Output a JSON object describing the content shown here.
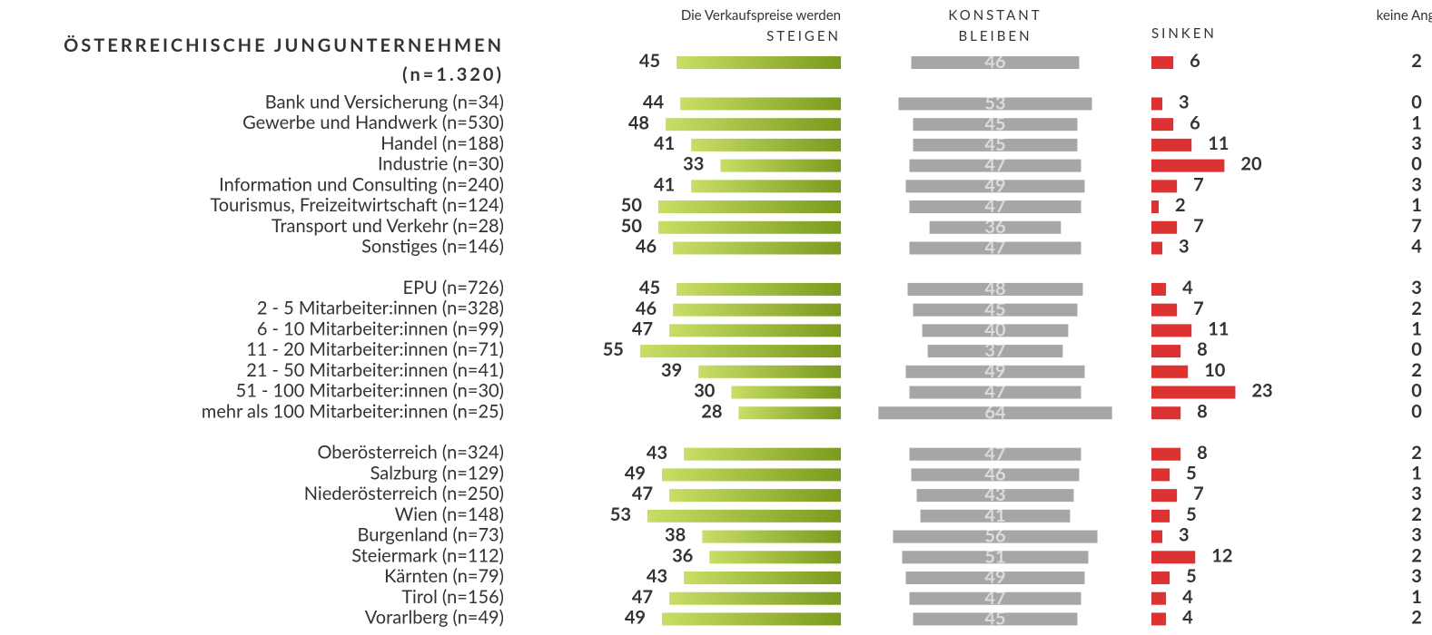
{
  "chart_data": {
    "type": "bar",
    "subtitle": "Die Verkaufspreise werden",
    "category_note": "(n=1.320)",
    "categories": [
      "ÖSTERREICHISCHE JUNGUNTERNEHMEN",
      "Bank und Versicherung (n=34)",
      "Gewerbe und Handwerk (n=530)",
      "Handel (n=188)",
      "Industrie (n=30)",
      "Information und Consulting (n=240)",
      "Tourismus, Freizeitwirtschaft (n=124)",
      "Transport und Verkehr (n=28)",
      "Sonstiges (n=146)",
      "EPU (n=726)",
      "2 - 5 Mitarbeiter:innen (n=328)",
      "6 - 10 Mitarbeiter:innen (n=99)",
      "11 - 20 Mitarbeiter:innen (n=71)",
      "21 - 50 Mitarbeiter:innen (n=41)",
      "51 - 100 Mitarbeiter:innen (n=30)",
      "mehr als 100 Mitarbeiter:innen (n=25)",
      "Oberösterreich (n=324)",
      "Salzburg (n=129)",
      "Niederösterreich (n=250)",
      "Wien (n=148)",
      "Burgenland (n=73)",
      "Steiermark (n=112)",
      "Kärnten (n=79)",
      "Tirol (n=156)",
      "Vorarlberg (n=49)"
    ],
    "series": [
      {
        "name": "STEIGEN",
        "color": "#8aab26",
        "values": [
          45,
          44,
          48,
          41,
          33,
          41,
          50,
          50,
          46,
          45,
          46,
          47,
          55,
          39,
          30,
          28,
          43,
          49,
          47,
          53,
          38,
          36,
          43,
          47,
          49
        ]
      },
      {
        "name": "KONSTANT BLEIBEN",
        "color": "#a6a6a6",
        "values": [
          46,
          53,
          45,
          45,
          47,
          49,
          47,
          36,
          47,
          48,
          45,
          40,
          37,
          49,
          47,
          64,
          47,
          46,
          43,
          41,
          56,
          51,
          49,
          47,
          45
        ]
      },
      {
        "name": "SINKEN",
        "color": "#dc3232",
        "values": [
          6,
          3,
          6,
          11,
          20,
          7,
          2,
          7,
          3,
          4,
          7,
          11,
          8,
          10,
          23,
          8,
          8,
          5,
          7,
          5,
          3,
          12,
          5,
          4,
          4
        ]
      },
      {
        "name": "keine Angabe",
        "values": [
          2,
          0,
          1,
          3,
          0,
          3,
          1,
          7,
          4,
          3,
          2,
          1,
          0,
          2,
          0,
          0,
          2,
          1,
          3,
          2,
          3,
          2,
          3,
          1,
          2
        ]
      }
    ]
  }
}
